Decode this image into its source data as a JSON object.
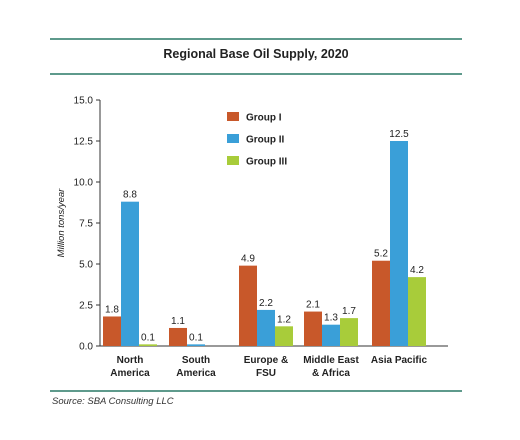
{
  "chart_data": {
    "type": "bar",
    "title": "Regional Base Oil Supply, 2020",
    "ylabel": "Million tons/year",
    "xlabel": "",
    "ylim": [
      0,
      15
    ],
    "yticks": [
      "0.0",
      "2.5",
      "5.0",
      "7.5",
      "10.0",
      "12.5",
      "15.0"
    ],
    "categories": [
      [
        "North",
        "America"
      ],
      [
        "South",
        "America"
      ],
      [
        "Europe &",
        "FSU"
      ],
      [
        "Middle East",
        "& Africa"
      ],
      [
        "Asia Pacific"
      ]
    ],
    "series": [
      {
        "name": "Group I",
        "color": "#c8582a",
        "values": [
          1.8,
          1.1,
          4.9,
          2.1,
          5.2
        ],
        "labels": [
          "1.8",
          "1.1",
          "4.9",
          "2.1",
          "5.2"
        ]
      },
      {
        "name": "Group II",
        "color": "#3a9fd8",
        "values": [
          8.8,
          0.1,
          2.2,
          1.3,
          12.5
        ],
        "labels": [
          "8.8",
          "0.1",
          "2.2",
          "1.3",
          "12.5"
        ]
      },
      {
        "name": "Group III",
        "color": "#a8cc3a",
        "values": [
          0.1,
          0,
          1.2,
          1.7,
          4.2
        ],
        "labels": [
          "0.1",
          "",
          "1.2",
          "1.7",
          "4.2"
        ]
      }
    ],
    "legend_position": "top-center",
    "grid": false
  },
  "source_note": "Source: SBA Consulting LLC"
}
